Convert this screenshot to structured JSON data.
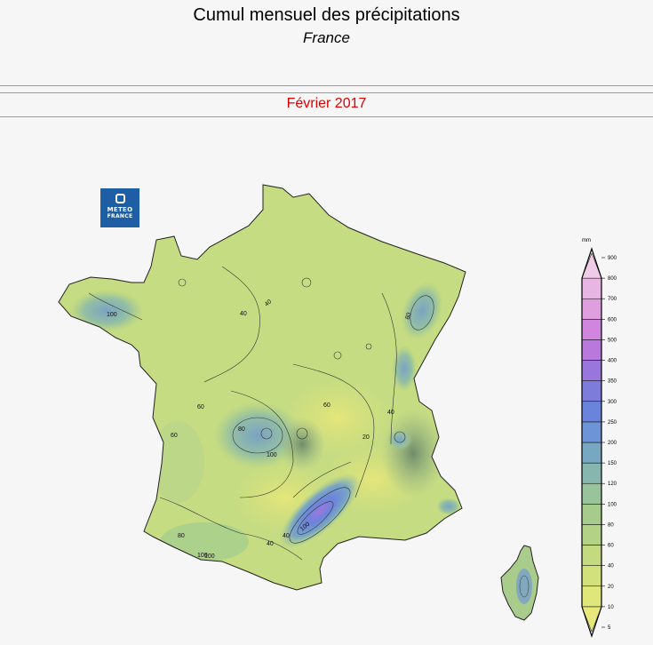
{
  "header": {
    "title": "Cumul mensuel des précipitations",
    "subtitle": "France",
    "period": "Février 2017"
  },
  "logo": {
    "line1": "METEO",
    "line2": "FRANCE"
  },
  "legend": {
    "unit": "mm",
    "ticks": [
      5,
      10,
      20,
      40,
      60,
      80,
      100,
      120,
      150,
      200,
      250,
      300,
      350,
      400,
      500,
      600,
      700,
      800,
      900
    ],
    "colors": [
      "#e8e87a",
      "#dfe67a",
      "#d3e17c",
      "#c3da80",
      "#b3d285",
      "#a6cb8b",
      "#99c39a",
      "#86b6ad",
      "#78a7c2",
      "#6c94d6",
      "#6a84dc",
      "#7e7cdb",
      "#9976dc",
      "#b878dc",
      "#cf86dc",
      "#df9ede",
      "#e8b6e2",
      "#f0cbe8"
    ]
  },
  "map": {
    "contour_labels": [
      "40",
      "40",
      "60",
      "60",
      "80",
      "80",
      "100",
      "100",
      "100",
      "20",
      "40",
      "60",
      "40",
      "80",
      "100",
      "40",
      "100"
    ]
  },
  "colors": {
    "title_red": "#e00000",
    "logo_blue": "#1d5ea4",
    "land_base": "#c6dc82",
    "sea": "#f6f6f6"
  }
}
